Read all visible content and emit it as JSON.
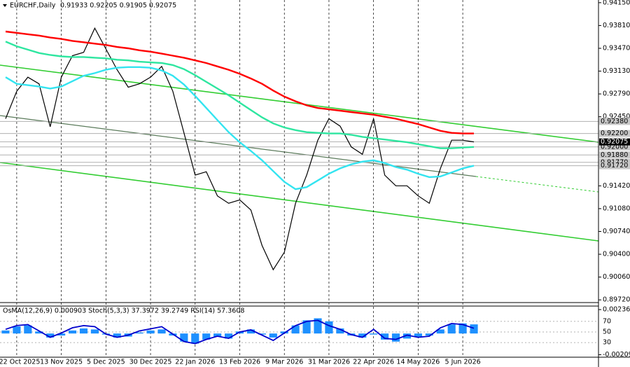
{
  "chart_data": [
    {
      "type": "line",
      "title": "EURCHF,Daily",
      "ohlc_text": "0.91933 0.92205 0.91905 0.92075",
      "categories": [
        null,
        "22 Oct 2025",
        null,
        null,
        null,
        "13 Nov 2025",
        null,
        null,
        null,
        "5 Dec 2025",
        null,
        null,
        null,
        "30 Dec 2025",
        null,
        null,
        null,
        "22 Jan 2026",
        null,
        null,
        null,
        "13 Feb 2026",
        null,
        null,
        null,
        "9 Mar 2026",
        null,
        null,
        null,
        "31 Mar 2026",
        null,
        null,
        null,
        "22 Apr 2026",
        null,
        null,
        null,
        "14 May 2026",
        null,
        null,
        null,
        "5 Jun 2026",
        null
      ],
      "series": [
        {
          "color": "#000000",
          "values": [
            0.9242,
            0.9283,
            0.9304,
            0.9294,
            0.923,
            0.9304,
            0.9336,
            0.9341,
            0.9377,
            0.9346,
            0.9315,
            0.9289,
            0.9294,
            0.9304,
            0.932,
            0.9283,
            0.9221,
            0.9158,
            0.9163,
            0.9127,
            0.9116,
            0.9121,
            0.9106,
            0.9053,
            0.9017,
            0.9043,
            0.9116,
            0.9158,
            0.921,
            0.9242,
            0.9231,
            0.92,
            0.9189,
            0.9242,
            0.9158,
            0.9142,
            0.9142,
            0.9127,
            0.9116,
            0.9168,
            0.921,
            0.921,
            0.92075
          ]
        },
        {
          "color": "#ff0000",
          "values": [
            0.9372,
            0.937,
            0.9368,
            0.9366,
            0.9363,
            0.9361,
            0.9358,
            0.9356,
            0.9354,
            0.9352,
            0.9349,
            0.9347,
            0.9344,
            0.9342,
            0.9339,
            0.9336,
            0.9333,
            0.9329,
            0.9325,
            0.932,
            0.9315,
            0.9309,
            0.9302,
            0.9294,
            0.9284,
            0.9275,
            0.9268,
            0.9262,
            0.9258,
            0.9256,
            0.9254,
            0.9252,
            0.925,
            0.9248,
            0.9245,
            0.9242,
            0.9238,
            0.9234,
            0.9229,
            0.9224,
            0.9221,
            0.922,
            0.922
          ]
        },
        {
          "color": "#2ee6a0",
          "values": [
            0.9357,
            0.935,
            0.9345,
            0.934,
            0.9337,
            0.9335,
            0.9334,
            0.9334,
            0.9333,
            0.9332,
            0.933,
            0.9329,
            0.9327,
            0.9326,
            0.9325,
            0.9322,
            0.9316,
            0.9307,
            0.9297,
            0.9287,
            0.9277,
            0.9266,
            0.9255,
            0.9244,
            0.9235,
            0.9229,
            0.9225,
            0.9222,
            0.9221,
            0.922,
            0.922,
            0.9218,
            0.9215,
            0.9213,
            0.9211,
            0.9209,
            0.9207,
            0.9204,
            0.9201,
            0.9198,
            0.9198,
            0.9199,
            0.92
          ]
        },
        {
          "color": "#33e4f0",
          "values": [
            0.9304,
            0.9294,
            0.9292,
            0.929,
            0.9287,
            0.929,
            0.9298,
            0.9306,
            0.931,
            0.9315,
            0.9318,
            0.9319,
            0.9319,
            0.9318,
            0.9314,
            0.9306,
            0.9293,
            0.9276,
            0.9258,
            0.924,
            0.9222,
            0.9207,
            0.9194,
            0.918,
            0.9164,
            0.9148,
            0.9137,
            0.914,
            0.915,
            0.916,
            0.9168,
            0.9174,
            0.9178,
            0.918,
            0.9176,
            0.917,
            0.9166,
            0.916,
            0.9155,
            0.9156,
            0.9162,
            0.9168,
            0.9172
          ]
        }
      ],
      "ylim": [
        0.8968,
        0.9419
      ],
      "yticks": [
        {
          "value": 0.9415,
          "label": "0.94150"
        },
        {
          "value": 0.9381,
          "label": "0.93810"
        },
        {
          "value": 0.9347,
          "label": "0.93470"
        },
        {
          "value": 0.9313,
          "label": "0.93130"
        },
        {
          "value": 0.9279,
          "label": "0.92790"
        },
        {
          "value": 0.9245,
          "label": "0.92450"
        },
        {
          "value": 0.9142,
          "label": "0.91420"
        },
        {
          "value": 0.9108,
          "label": "0.91080"
        },
        {
          "value": 0.9074,
          "label": "0.90740"
        },
        {
          "value": 0.904,
          "label": "0.90400"
        },
        {
          "value": 0.9006,
          "label": "0.90060"
        },
        {
          "value": 0.8972,
          "label": "0.89720"
        }
      ],
      "levels": [
        {
          "value": 0.9238,
          "label": "0.92380"
        },
        {
          "value": 0.922,
          "label": "0.92200"
        },
        {
          "value": 0.92,
          "label": "0.92000"
        },
        {
          "value": 0.9188,
          "label": "0.91880"
        },
        {
          "value": 0.9177,
          "label": "0.91770"
        },
        {
          "value": 0.9172,
          "label": "0.91720"
        }
      ],
      "last_price": {
        "value": 0.92075,
        "label": "0.92075"
      }
    },
    {
      "type": "bar",
      "title": "OsMA(12,26,9) 0.000903 Stoch(5,3,3) 37.3972 39.2749 RSI(14) 57.3608",
      "color": "#1e90ff",
      "values": [
        0.0003,
        0.0007,
        0.0008,
        0.0002,
        -0.0004,
        -0.0002,
        0.0003,
        0.0005,
        0.0004,
        -0.0001,
        -0.0004,
        -0.0003,
        0.0001,
        0.0003,
        0.0004,
        -0.0002,
        -0.0008,
        -0.001,
        -0.0006,
        -0.0003,
        -0.0005,
        0.0002,
        0.0004,
        -0.0001,
        -0.0004,
        0.0002,
        0.0008,
        0.0013,
        0.0015,
        0.0012,
        0.0005,
        -0.0002,
        -0.0004,
        -0.0001,
        -0.0006,
        -0.0008,
        -0.0005,
        -0.0003,
        -0.0002,
        0.0004,
        0.0009,
        0.001,
        0.0009
      ],
      "ylim": [
        -0.0022,
        0.0025
      ],
      "yticks": [
        0.0023603,
        -0.002095
      ],
      "series": [
        {
          "color": "#0000cd",
          "axis": "y2",
          "values": [
            55,
            62,
            64,
            52,
            40,
            48,
            58,
            62,
            60,
            46,
            40,
            44,
            52,
            56,
            60,
            46,
            32,
            28,
            36,
            42,
            38,
            50,
            54,
            44,
            34,
            48,
            62,
            70,
            72,
            62,
            55,
            45,
            40,
            55,
            38,
            36,
            44,
            40,
            42,
            58,
            66,
            64,
            57
          ]
        }
      ],
      "y2lim": [
        5,
        95
      ],
      "y2ticks": [
        70,
        50,
        30
      ]
    }
  ]
}
